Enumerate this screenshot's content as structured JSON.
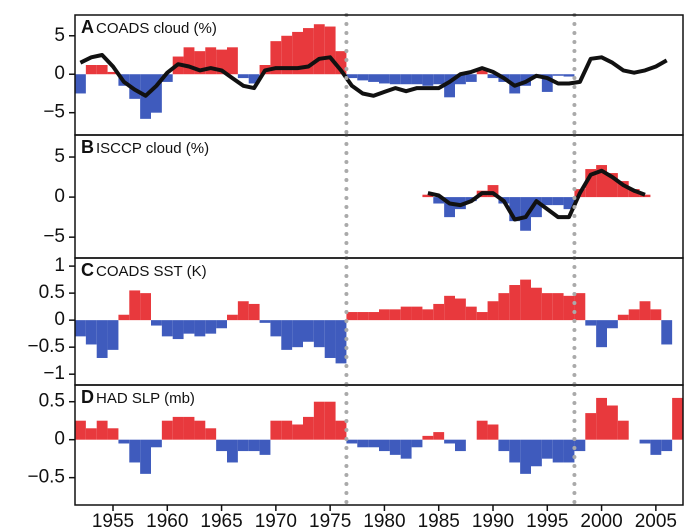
{
  "chart_data": [
    {
      "type": "bar",
      "label": "A",
      "title": "COADS cloud (%)",
      "x": [
        1952,
        1953,
        1954,
        1955,
        1956,
        1957,
        1958,
        1959,
        1960,
        1961,
        1962,
        1963,
        1964,
        1965,
        1966,
        1967,
        1968,
        1969,
        1970,
        1971,
        1972,
        1973,
        1974,
        1975,
        1976,
        1977,
        1978,
        1979,
        1980,
        1981,
        1982,
        1983,
        1984,
        1985,
        1986,
        1987,
        1988,
        1989,
        1990,
        1991,
        1992,
        1993,
        1994,
        1995,
        1996,
        1997,
        1998,
        1999,
        2000,
        2001,
        2002,
        2003,
        2004,
        2005,
        2006
      ],
      "series": [
        {
          "style": "bar",
          "color_pos": "#e8393d",
          "color_neg": "#3f5bbd",
          "values": [
            -2.5,
            1.2,
            1.2,
            0.3,
            -1.5,
            -3.2,
            -5.8,
            -5.0,
            -1.0,
            2.3,
            3.5,
            3.0,
            3.5,
            3.2,
            3.5,
            -0.5,
            -1.2,
            1.2,
            4.3,
            5.0,
            5.5,
            6.0,
            6.5,
            6.2,
            3.0,
            -0.5,
            -0.8,
            -1.0,
            -1.2,
            -1.3,
            -1.3,
            -1.3,
            -1.5,
            -1.3,
            -3.0,
            -1.3,
            -1.0,
            0.5,
            -0.5,
            -1.0,
            -2.5,
            -1.5,
            -0.5,
            -2.3,
            -0.2,
            -0.3,
            null,
            null,
            null,
            null,
            null,
            null,
            null,
            null,
            null
          ]
        },
        {
          "style": "line",
          "color": "#111111",
          "values": [
            1.5,
            2.2,
            2.5,
            1.0,
            -1.0,
            -2.0,
            -2.8,
            -1.5,
            0.2,
            1.3,
            1.0,
            0.5,
            0.8,
            0.5,
            -0.5,
            -1.5,
            -1.8,
            0.5,
            0.8,
            0.8,
            0.8,
            1.0,
            2.0,
            2.2,
            0.5,
            -1.5,
            -2.5,
            -2.8,
            -2.3,
            -1.8,
            -2.2,
            -1.8,
            -1.8,
            -1.8,
            -1.0,
            0.0,
            0.3,
            0.8,
            0.3,
            -0.5,
            -1.5,
            -1.0,
            -0.2,
            -0.5,
            -1.2,
            -1.2,
            -1.0,
            2.0,
            2.2,
            1.5,
            0.5,
            0.2,
            0.5,
            1.0,
            1.8
          ]
        }
      ],
      "xlim": [
        1951.5,
        2007.5
      ],
      "ylim": [
        -7.9,
        7.7
      ],
      "yticks": [
        5,
        0,
        {
          "value": -5,
          "label": "−5"
        }
      ],
      "vlines": [
        1976.5,
        1997.5
      ],
      "vline_color": "#aaaaaa"
    },
    {
      "type": "bar",
      "label": "B",
      "title": "ISCCP cloud (%)",
      "x": [
        1984,
        1985,
        1986,
        1987,
        1988,
        1989,
        1990,
        1991,
        1992,
        1993,
        1994,
        1995,
        1996,
        1997,
        1998,
        1999,
        2000,
        2001,
        2002,
        2003,
        2004
      ],
      "series": [
        {
          "style": "bar",
          "color_pos": "#e8393d",
          "color_neg": "#3f5bbd",
          "values": [
            0.3,
            -0.8,
            -2.5,
            -1.5,
            -0.5,
            0.8,
            1.5,
            -0.8,
            -3.0,
            -4.2,
            -2.5,
            -1.0,
            -1.0,
            -1.5,
            1.0,
            3.5,
            4.0,
            3.0,
            2.0,
            1.0,
            0.3
          ]
        },
        {
          "style": "line",
          "color": "#111111",
          "values": [
            0.5,
            0.2,
            -0.8,
            -1.0,
            -0.5,
            0.5,
            0.5,
            -0.5,
            -2.8,
            -2.5,
            -0.5,
            -1.5,
            -2.5,
            -2.5,
            0.5,
            2.8,
            3.3,
            2.5,
            1.5,
            0.8,
            0.3
          ]
        }
      ],
      "xlim": [
        1951.5,
        2007.5
      ],
      "ylim": [
        -7.6,
        7.75
      ],
      "yticks": [
        5,
        0,
        {
          "value": -5,
          "label": "−5"
        }
      ],
      "vlines": [
        1976.5,
        1997.5
      ],
      "vline_color": "#aaaaaa"
    },
    {
      "type": "bar",
      "label": "C",
      "title": "COADS SST (K)",
      "x": [
        1952,
        1953,
        1954,
        1955,
        1956,
        1957,
        1958,
        1959,
        1960,
        1961,
        1962,
        1963,
        1964,
        1965,
        1966,
        1967,
        1968,
        1969,
        1970,
        1971,
        1972,
        1973,
        1974,
        1975,
        1976,
        1977,
        1978,
        1979,
        1980,
        1981,
        1982,
        1983,
        1984,
        1985,
        1986,
        1987,
        1988,
        1989,
        1990,
        1991,
        1992,
        1993,
        1994,
        1995,
        1996,
        1997,
        1998,
        1999,
        2000,
        2001,
        2002,
        2003,
        2004,
        2005,
        2006
      ],
      "series": [
        {
          "style": "bar",
          "color_pos": "#e8393d",
          "color_neg": "#3f5bbd",
          "values": [
            -0.3,
            -0.45,
            -0.7,
            -0.55,
            0.1,
            0.55,
            0.5,
            -0.1,
            -0.3,
            -0.35,
            -0.25,
            -0.3,
            -0.25,
            -0.15,
            0.1,
            0.35,
            0.3,
            -0.05,
            -0.3,
            -0.55,
            -0.5,
            -0.4,
            -0.5,
            -0.7,
            -0.8,
            0.15,
            0.15,
            0.15,
            0.2,
            0.2,
            0.25,
            0.25,
            0.2,
            0.3,
            0.45,
            0.4,
            0.25,
            0.15,
            0.35,
            0.5,
            0.65,
            0.75,
            0.6,
            0.5,
            0.5,
            0.45,
            0.5,
            -0.1,
            -0.5,
            -0.15,
            0.1,
            0.2,
            0.35,
            0.2,
            -0.45
          ]
        }
      ],
      "xlim": [
        1951.5,
        2007.5
      ],
      "ylim": [
        -1.2,
        1.15
      ],
      "yticks": [
        1,
        0.5,
        0,
        {
          "value": -0.5,
          "label": "−0.5"
        },
        {
          "value": -1,
          "label": "−1"
        }
      ],
      "vlines": [
        1976.5,
        1997.5
      ],
      "vline_color": "#aaaaaa"
    },
    {
      "type": "bar",
      "label": "D",
      "title": "HAD SLP (mb)",
      "x": [
        1952,
        1953,
        1954,
        1955,
        1956,
        1957,
        1958,
        1959,
        1960,
        1961,
        1962,
        1963,
        1964,
        1965,
        1966,
        1967,
        1968,
        1969,
        1970,
        1971,
        1972,
        1973,
        1974,
        1975,
        1976,
        1977,
        1978,
        1979,
        1980,
        1981,
        1982,
        1983,
        1984,
        1985,
        1986,
        1987,
        1988,
        1989,
        1990,
        1991,
        1992,
        1993,
        1994,
        1995,
        1996,
        1997,
        1998,
        1999,
        2000,
        2001,
        2002,
        2003,
        2004,
        2005,
        2006,
        2007
      ],
      "series": [
        {
          "style": "bar",
          "color_pos": "#e8393d",
          "color_neg": "#3f5bbd",
          "values": [
            0.25,
            0.15,
            0.25,
            0.15,
            -0.05,
            -0.3,
            -0.45,
            -0.1,
            0.25,
            0.3,
            0.3,
            0.25,
            0.15,
            -0.15,
            -0.3,
            -0.15,
            -0.15,
            -0.2,
            0.25,
            0.25,
            0.2,
            0.3,
            0.5,
            0.5,
            0.25,
            -0.05,
            -0.1,
            -0.1,
            -0.15,
            -0.2,
            -0.25,
            -0.1,
            0.05,
            0.1,
            -0.05,
            -0.15,
            0.0,
            0.25,
            0.2,
            -0.15,
            -0.3,
            -0.45,
            -0.35,
            -0.25,
            -0.3,
            -0.3,
            -0.15,
            0.35,
            0.55,
            0.45,
            0.25,
            0.0,
            -0.05,
            -0.2,
            -0.15,
            0.55
          ]
        }
      ],
      "xlim": [
        1951.5,
        2007.5
      ],
      "ylim": [
        -0.86,
        0.72
      ],
      "yticks": [
        0.5,
        0,
        {
          "value": -0.5,
          "label": "−0.5"
        }
      ],
      "xticks": [
        1955,
        1960,
        1965,
        1970,
        1975,
        1980,
        1985,
        1990,
        1995,
        2000,
        2005
      ],
      "vlines": [
        1976.5,
        1997.5
      ],
      "vline_color": "#aaaaaa"
    }
  ]
}
